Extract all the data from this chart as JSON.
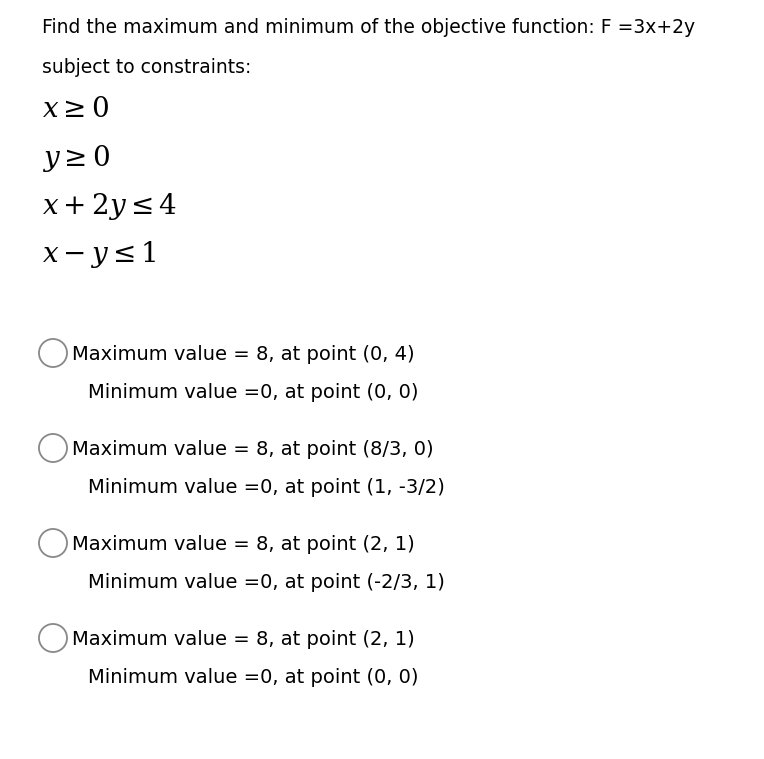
{
  "background_color": "#ffffff",
  "header_text": "Find the maximum and minimum of the objective function: F =3x+2y",
  "subheader_text": "subject to constraints:",
  "constraints": [
    "$x \\geq 0$",
    "$y \\geq 0$",
    "$x + 2y \\leq 4$",
    "$x - y \\leq 1$"
  ],
  "options": [
    {
      "max_line": "Maximum value = 8, at point (0, 4)",
      "min_line": "Minimum value =0, at point (0, 0)"
    },
    {
      "max_line": "Maximum value = 8, at point (8/3, 0)",
      "min_line": "Minimum value =0, at point (1, -3/2)"
    },
    {
      "max_line": "Maximum value = 8, at point (2, 1)",
      "min_line": "Minimum value =0, at point (-2/3, 1)"
    },
    {
      "max_line": "Maximum value = 8, at point (2, 1)",
      "min_line": "Minimum value =0, at point (0, 0)"
    }
  ],
  "header_fontsize": 13.5,
  "subheader_fontsize": 13.5,
  "constraint_fontsize": 20,
  "option_fontsize": 14,
  "text_color": "#000000",
  "circle_color": "#888888"
}
